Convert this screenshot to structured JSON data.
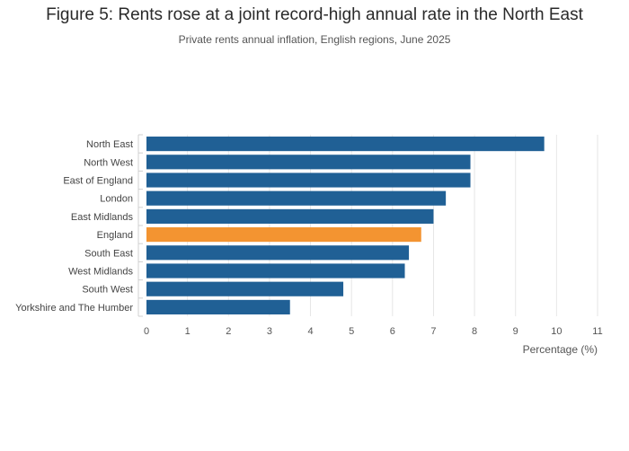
{
  "chart_data": {
    "type": "bar",
    "orientation": "horizontal",
    "title": "Figure 5: Rents rose at a joint record-high annual rate in the North East",
    "subtitle": "Private rents annual inflation, English regions, June 2025",
    "xlabel": "Percentage (%)",
    "ylabel": "",
    "xlim": [
      0,
      11
    ],
    "xticks": [
      0,
      1,
      2,
      3,
      4,
      5,
      6,
      7,
      8,
      9,
      10,
      11
    ],
    "grid": true,
    "categories": [
      "North East",
      "North West",
      "East of England",
      "London",
      "East Midlands",
      "England",
      "South East",
      "West Midlands",
      "South West",
      "Yorkshire and The Humber"
    ],
    "values": [
      9.7,
      7.9,
      7.9,
      7.3,
      7.0,
      6.7,
      6.4,
      6.3,
      4.8,
      3.5
    ],
    "bar_colors": [
      "#206095",
      "#206095",
      "#206095",
      "#206095",
      "#206095",
      "#F39431",
      "#206095",
      "#206095",
      "#206095",
      "#206095"
    ],
    "gridline_color": "#e6e6e6"
  }
}
